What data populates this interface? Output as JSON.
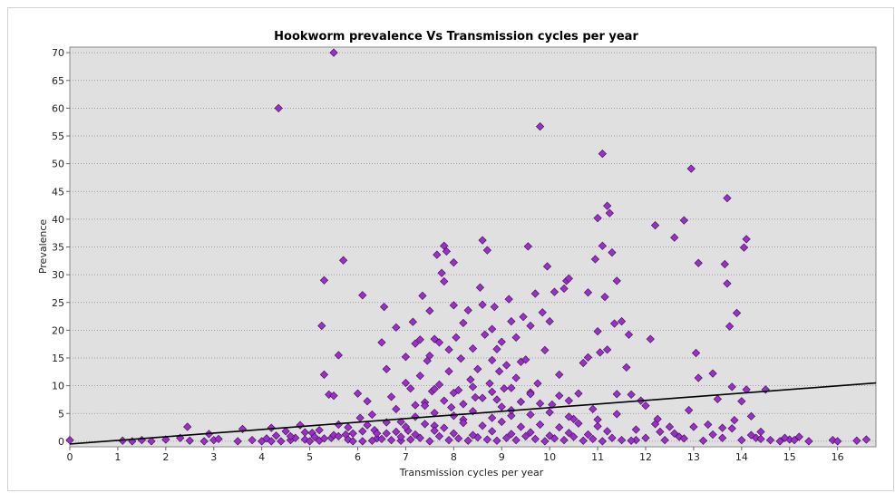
{
  "chart_data": {
    "type": "scatter",
    "title": "Hookworm prevalence Vs Transmission cycles per year",
    "xlabel": "Transmission cycles per year",
    "ylabel": "Prevalence",
    "xlim": [
      0,
      16.8
    ],
    "ylim": [
      -1,
      71
    ],
    "xticks": [
      "0",
      "1",
      "2",
      "3",
      "4",
      "5",
      "6",
      "7",
      "8",
      "9",
      "10",
      "11",
      "12",
      "13",
      "14",
      "15",
      "16"
    ],
    "yticks": [
      "0",
      "5",
      "10",
      "15",
      "20",
      "25",
      "30",
      "35",
      "40",
      "45",
      "50",
      "55",
      "60",
      "65",
      "70"
    ],
    "grid": "horizontal dotted",
    "legend": "none",
    "colors": {
      "marker": "#9b30c8",
      "marker_edge": "#3a0b52",
      "trend": "#000000",
      "plot_bg": "#e0e0e0"
    },
    "trend_line": {
      "x": [
        0,
        16.8
      ],
      "y": [
        -0.5,
        10.5
      ]
    },
    "series": [
      {
        "points": [
          [
            0.0,
            0.2
          ],
          [
            1.1,
            0.1
          ],
          [
            1.3,
            0.0
          ],
          [
            1.5,
            0.2
          ],
          [
            1.7,
            0.0
          ],
          [
            2.0,
            0.3
          ],
          [
            2.3,
            0.6
          ],
          [
            2.45,
            2.6
          ],
          [
            2.5,
            0.1
          ],
          [
            2.8,
            0.0
          ],
          [
            2.9,
            1.3
          ],
          [
            3.0,
            0.2
          ],
          [
            3.1,
            0.4
          ],
          [
            3.5,
            0.0
          ],
          [
            3.6,
            2.2
          ],
          [
            3.8,
            0.2
          ],
          [
            4.0,
            0.0
          ],
          [
            4.1,
            0.5
          ],
          [
            4.2,
            0.0
          ],
          [
            4.2,
            2.4
          ],
          [
            4.3,
            1.0
          ],
          [
            4.35,
            60.0
          ],
          [
            4.4,
            0.0
          ],
          [
            4.5,
            1.8
          ],
          [
            4.6,
            0.2
          ],
          [
            4.7,
            0.6
          ],
          [
            4.8,
            2.9
          ],
          [
            4.9,
            0.3
          ],
          [
            5.0,
            0.0
          ],
          [
            5.05,
            1.5
          ],
          [
            5.1,
            0.8
          ],
          [
            5.2,
            0.1
          ],
          [
            5.25,
            20.8
          ],
          [
            5.3,
            29.0
          ],
          [
            5.3,
            12.0
          ],
          [
            5.4,
            8.4
          ],
          [
            5.45,
            0.6
          ],
          [
            5.5,
            70.0
          ],
          [
            5.5,
            8.2
          ],
          [
            5.6,
            3.0
          ],
          [
            5.6,
            15.5
          ],
          [
            5.7,
            32.6
          ],
          [
            5.75,
            1.2
          ],
          [
            5.8,
            0.3
          ],
          [
            5.9,
            0.0
          ],
          [
            6.0,
            8.6
          ],
          [
            6.05,
            4.2
          ],
          [
            6.1,
            26.3
          ],
          [
            6.1,
            0.0
          ],
          [
            6.2,
            7.2
          ],
          [
            6.3,
            4.8
          ],
          [
            6.35,
            2.0
          ],
          [
            6.4,
            0.5
          ],
          [
            6.5,
            17.8
          ],
          [
            6.55,
            24.2
          ],
          [
            6.6,
            13.0
          ],
          [
            6.6,
            1.4
          ],
          [
            6.7,
            8.0
          ],
          [
            6.8,
            20.5
          ],
          [
            6.8,
            5.8
          ],
          [
            6.9,
            3.5
          ],
          [
            6.9,
            0.1
          ],
          [
            7.0,
            15.2
          ],
          [
            7.0,
            10.5
          ],
          [
            7.05,
            1.9
          ],
          [
            7.1,
            9.5
          ],
          [
            7.15,
            21.5
          ],
          [
            7.2,
            17.6
          ],
          [
            7.2,
            6.5
          ],
          [
            7.3,
            18.3
          ],
          [
            7.3,
            11.8
          ],
          [
            7.35,
            26.2
          ],
          [
            7.4,
            7.0
          ],
          [
            7.45,
            14.5
          ],
          [
            7.5,
            15.4
          ],
          [
            7.5,
            23.5
          ],
          [
            7.55,
            9.0
          ],
          [
            7.6,
            18.4
          ],
          [
            7.6,
            2.8
          ],
          [
            7.65,
            33.6
          ],
          [
            7.7,
            17.8
          ],
          [
            7.7,
            10.2
          ],
          [
            7.75,
            30.3
          ],
          [
            7.8,
            35.2
          ],
          [
            7.8,
            28.8
          ],
          [
            7.85,
            34.2
          ],
          [
            7.9,
            16.5
          ],
          [
            7.9,
            12.6
          ],
          [
            7.95,
            6.1
          ],
          [
            8.0,
            24.5
          ],
          [
            8.0,
            32.2
          ],
          [
            8.05,
            18.7
          ],
          [
            8.1,
            9.2
          ],
          [
            8.15,
            14.9
          ],
          [
            8.2,
            21.3
          ],
          [
            8.2,
            3.9
          ],
          [
            8.3,
            23.6
          ],
          [
            8.35,
            11.1
          ],
          [
            8.4,
            16.7
          ],
          [
            8.45,
            7.9
          ],
          [
            8.5,
            13.0
          ],
          [
            8.55,
            27.7
          ],
          [
            8.6,
            36.2
          ],
          [
            8.6,
            24.6
          ],
          [
            8.65,
            19.2
          ],
          [
            8.7,
            34.4
          ],
          [
            8.75,
            10.4
          ],
          [
            8.8,
            20.2
          ],
          [
            8.8,
            14.6
          ],
          [
            8.85,
            24.2
          ],
          [
            8.9,
            7.5
          ],
          [
            8.9,
            16.6
          ],
          [
            8.95,
            12.6
          ],
          [
            9.0,
            17.9
          ],
          [
            9.05,
            9.5
          ],
          [
            9.1,
            13.7
          ],
          [
            9.15,
            25.6
          ],
          [
            9.2,
            21.6
          ],
          [
            9.2,
            4.6
          ],
          [
            9.3,
            18.7
          ],
          [
            9.3,
            11.4
          ],
          [
            9.4,
            14.3
          ],
          [
            9.45,
            22.4
          ],
          [
            9.5,
            14.7
          ],
          [
            9.55,
            35.1
          ],
          [
            9.6,
            20.8
          ],
          [
            9.6,
            8.8
          ],
          [
            9.7,
            26.6
          ],
          [
            9.75,
            10.4
          ],
          [
            9.8,
            56.7
          ],
          [
            9.85,
            23.2
          ],
          [
            9.9,
            16.4
          ],
          [
            9.95,
            31.5
          ],
          [
            10.0,
            21.6
          ],
          [
            10.05,
            6.6
          ],
          [
            10.1,
            26.9
          ],
          [
            10.2,
            12.0
          ],
          [
            10.3,
            27.5
          ],
          [
            10.35,
            28.9
          ],
          [
            10.4,
            29.3
          ],
          [
            10.4,
            7.3
          ],
          [
            10.5,
            4.0
          ],
          [
            10.6,
            8.6
          ],
          [
            10.7,
            14.1
          ],
          [
            10.8,
            15.1
          ],
          [
            10.8,
            26.8
          ],
          [
            10.9,
            5.8
          ],
          [
            10.95,
            32.8
          ],
          [
            11.0,
            40.2
          ],
          [
            11.0,
            19.8
          ],
          [
            11.05,
            16.0
          ],
          [
            11.1,
            51.8
          ],
          [
            11.1,
            35.2
          ],
          [
            11.15,
            26.0
          ],
          [
            11.2,
            42.4
          ],
          [
            11.2,
            16.5
          ],
          [
            11.25,
            41.1
          ],
          [
            11.3,
            34.0
          ],
          [
            11.35,
            21.2
          ],
          [
            11.4,
            28.9
          ],
          [
            11.4,
            8.5
          ],
          [
            11.5,
            21.6
          ],
          [
            11.6,
            13.3
          ],
          [
            11.65,
            19.2
          ],
          [
            11.7,
            8.4
          ],
          [
            11.8,
            0.2
          ],
          [
            11.9,
            7.3
          ],
          [
            12.0,
            6.4
          ],
          [
            12.1,
            18.4
          ],
          [
            12.2,
            38.9
          ],
          [
            12.25,
            4.0
          ],
          [
            12.3,
            1.7
          ],
          [
            12.5,
            2.6
          ],
          [
            12.6,
            36.7
          ],
          [
            12.7,
            0.8
          ],
          [
            12.8,
            39.8
          ],
          [
            12.9,
            5.6
          ],
          [
            12.95,
            49.1
          ],
          [
            13.05,
            15.9
          ],
          [
            13.1,
            11.4
          ],
          [
            13.1,
            32.1
          ],
          [
            13.3,
            3.0
          ],
          [
            13.4,
            12.2
          ],
          [
            13.5,
            7.6
          ],
          [
            13.6,
            2.4
          ],
          [
            13.65,
            31.9
          ],
          [
            13.7,
            43.8
          ],
          [
            13.7,
            28.4
          ],
          [
            13.75,
            20.7
          ],
          [
            13.8,
            9.8
          ],
          [
            13.85,
            3.8
          ],
          [
            13.9,
            23.1
          ],
          [
            14.0,
            7.2
          ],
          [
            14.05,
            34.9
          ],
          [
            14.1,
            36.4
          ],
          [
            14.1,
            9.3
          ],
          [
            14.2,
            4.5
          ],
          [
            14.3,
            0.6
          ],
          [
            14.4,
            1.7
          ],
          [
            14.5,
            9.3
          ],
          [
            14.6,
            0.2
          ],
          [
            14.8,
            0.0
          ],
          [
            15.0,
            0.3
          ],
          [
            15.2,
            0.8
          ],
          [
            15.4,
            0.0
          ],
          [
            15.9,
            0.2
          ],
          [
            16.4,
            0.1
          ],
          [
            16.6,
            0.3
          ],
          [
            6.3,
            0.1
          ],
          [
            6.5,
            0.4
          ],
          [
            6.7,
            0.2
          ],
          [
            6.9,
            0.8
          ],
          [
            7.1,
            0.3
          ],
          [
            7.3,
            0.6
          ],
          [
            7.5,
            0.0
          ],
          [
            7.7,
            0.9
          ],
          [
            7.9,
            0.2
          ],
          [
            8.1,
            0.5
          ],
          [
            8.3,
            0.1
          ],
          [
            8.5,
            0.7
          ],
          [
            8.7,
            0.3
          ],
          [
            8.9,
            0.1
          ],
          [
            9.1,
            0.6
          ],
          [
            9.3,
            0.2
          ],
          [
            9.5,
            0.9
          ],
          [
            9.7,
            0.4
          ],
          [
            9.9,
            0.0
          ],
          [
            10.1,
            0.5
          ],
          [
            10.3,
            0.2
          ],
          [
            10.5,
            0.8
          ],
          [
            10.7,
            0.1
          ],
          [
            10.9,
            0.4
          ],
          [
            11.1,
            0.0
          ],
          [
            11.3,
            0.6
          ],
          [
            11.5,
            0.2
          ],
          [
            11.7,
            0.1
          ],
          [
            6.4,
            1.4
          ],
          [
            6.8,
            1.7
          ],
          [
            7.2,
            1.2
          ],
          [
            7.6,
            1.9
          ],
          [
            8.0,
            1.4
          ],
          [
            8.4,
            1.1
          ],
          [
            8.8,
            1.8
          ],
          [
            9.2,
            1.3
          ],
          [
            9.6,
            1.6
          ],
          [
            10.0,
            1.0
          ],
          [
            10.4,
            1.5
          ],
          [
            10.8,
            1.2
          ],
          [
            11.2,
            1.8
          ],
          [
            7.0,
            2.6
          ],
          [
            7.4,
            3.1
          ],
          [
            7.8,
            2.4
          ],
          [
            8.2,
            3.3
          ],
          [
            8.6,
            2.8
          ],
          [
            9.0,
            3.5
          ],
          [
            9.4,
            2.6
          ],
          [
            9.8,
            3.0
          ],
          [
            10.2,
            2.5
          ],
          [
            10.6,
            3.2
          ],
          [
            11.0,
            2.7
          ],
          [
            7.2,
            4.4
          ],
          [
            7.6,
            5.1
          ],
          [
            8.0,
            4.6
          ],
          [
            8.4,
            5.4
          ],
          [
            8.8,
            4.2
          ],
          [
            9.2,
            5.6
          ],
          [
            9.6,
            4.8
          ],
          [
            10.0,
            5.2
          ],
          [
            10.4,
            4.4
          ],
          [
            7.4,
            6.4
          ],
          [
            7.8,
            7.3
          ],
          [
            8.2,
            6.7
          ],
          [
            8.6,
            7.8
          ],
          [
            9.0,
            6.2
          ],
          [
            9.4,
            7.1
          ],
          [
            9.8,
            6.8
          ],
          [
            10.2,
            8.2
          ],
          [
            7.6,
            9.4
          ],
          [
            8.0,
            8.7
          ],
          [
            8.4,
            9.8
          ],
          [
            8.8,
            8.9
          ],
          [
            9.2,
            9.6
          ],
          [
            9.6,
            8.5
          ],
          [
            11.0,
            3.9
          ],
          [
            11.4,
            4.9
          ],
          [
            11.8,
            2.1
          ],
          [
            12.2,
            3.1
          ],
          [
            12.6,
            1.4
          ],
          [
            13.0,
            2.6
          ],
          [
            13.4,
            1.2
          ],
          [
            13.8,
            2.3
          ],
          [
            14.2,
            1.1
          ],
          [
            4.6,
            0.9
          ],
          [
            4.9,
            1.6
          ],
          [
            5.2,
            2.0
          ],
          [
            5.5,
            1.1
          ],
          [
            5.8,
            2.5
          ],
          [
            6.1,
            1.8
          ],
          [
            6.2,
            2.9
          ],
          [
            6.6,
            3.4
          ],
          [
            5.3,
            0.5
          ],
          [
            5.6,
            0.9
          ],
          [
            5.9,
            1.4
          ],
          [
            12.0,
            0.6
          ],
          [
            12.4,
            0.2
          ],
          [
            12.8,
            0.5
          ],
          [
            13.2,
            0.1
          ],
          [
            13.6,
            0.6
          ],
          [
            14.0,
            0.2
          ],
          [
            14.4,
            0.4
          ],
          [
            14.9,
            0.6
          ],
          [
            15.1,
            0.2
          ],
          [
            16.0,
            0.0
          ]
        ]
      }
    ]
  }
}
